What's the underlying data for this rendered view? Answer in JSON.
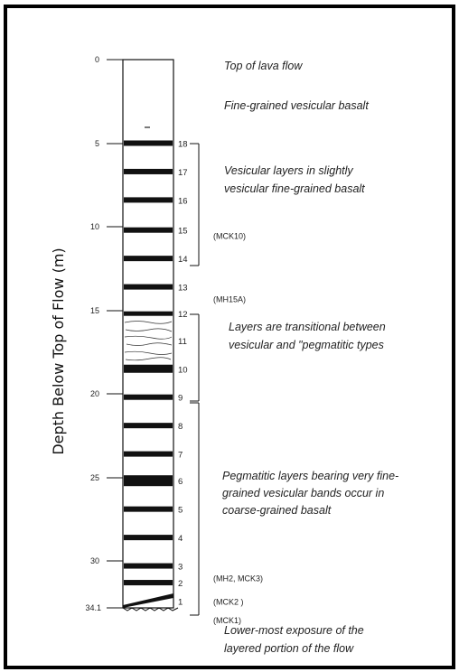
{
  "diagram": {
    "ylabel": "Depth Below Top of Flow (m)",
    "depth_ticks": [
      "0",
      "5",
      "10",
      "15",
      "20",
      "25",
      "30"
    ],
    "bottom_depth": "34.1",
    "layers": [
      {
        "n": "18",
        "depth": 5.0
      },
      {
        "n": "17",
        "depth": 6.7
      },
      {
        "n": "16",
        "depth": 8.4
      },
      {
        "n": "15",
        "depth": 10.2
      },
      {
        "n": "14",
        "depth": 11.9
      },
      {
        "n": "13",
        "depth": 13.6
      },
      {
        "n": "12",
        "depth": 15.2
      },
      {
        "n": "11",
        "depth": 16.8
      },
      {
        "n": "10",
        "depth": 18.5
      },
      {
        "n": "9",
        "depth": 20.2
      },
      {
        "n": "8",
        "depth": 21.9
      },
      {
        "n": "7",
        "depth": 23.6
      },
      {
        "n": "6",
        "depth": 25.2
      },
      {
        "n": "5",
        "depth": 26.9
      },
      {
        "n": "4",
        "depth": 28.6
      },
      {
        "n": "3",
        "depth": 30.3
      },
      {
        "n": "2",
        "depth": 31.3
      },
      {
        "n": "1",
        "depth": 32.4
      }
    ],
    "samples": [
      {
        "label": "(MCK10)",
        "depth": 10.5
      },
      {
        "label": "(MH15A)",
        "depth": 14.3
      },
      {
        "label": "(MH2, MCK3)",
        "depth": 31.0
      },
      {
        "label": "(MCK2 )",
        "depth": 32.4
      },
      {
        "label": "(MCK1)",
        "depth": 33.5
      }
    ],
    "annotations": {
      "top": "Top of lava flow",
      "fine": "Fine-grained vesicular basalt",
      "vesicular_1": "Vesicular layers in slightly",
      "vesicular_2": "vesicular fine-grained basalt",
      "transitional_1": "Layers are transitional between",
      "transitional_2": "vesicular and \"pegmatitic types",
      "pegmatitic_1": "Pegmatitic layers bearing very fine-",
      "pegmatitic_2": "grained vesicular bands occur in",
      "pegmatitic_3": "coarse-grained basalt",
      "lower_1": "Lower-most exposure of the",
      "lower_2": "layered portion of the flow"
    }
  }
}
